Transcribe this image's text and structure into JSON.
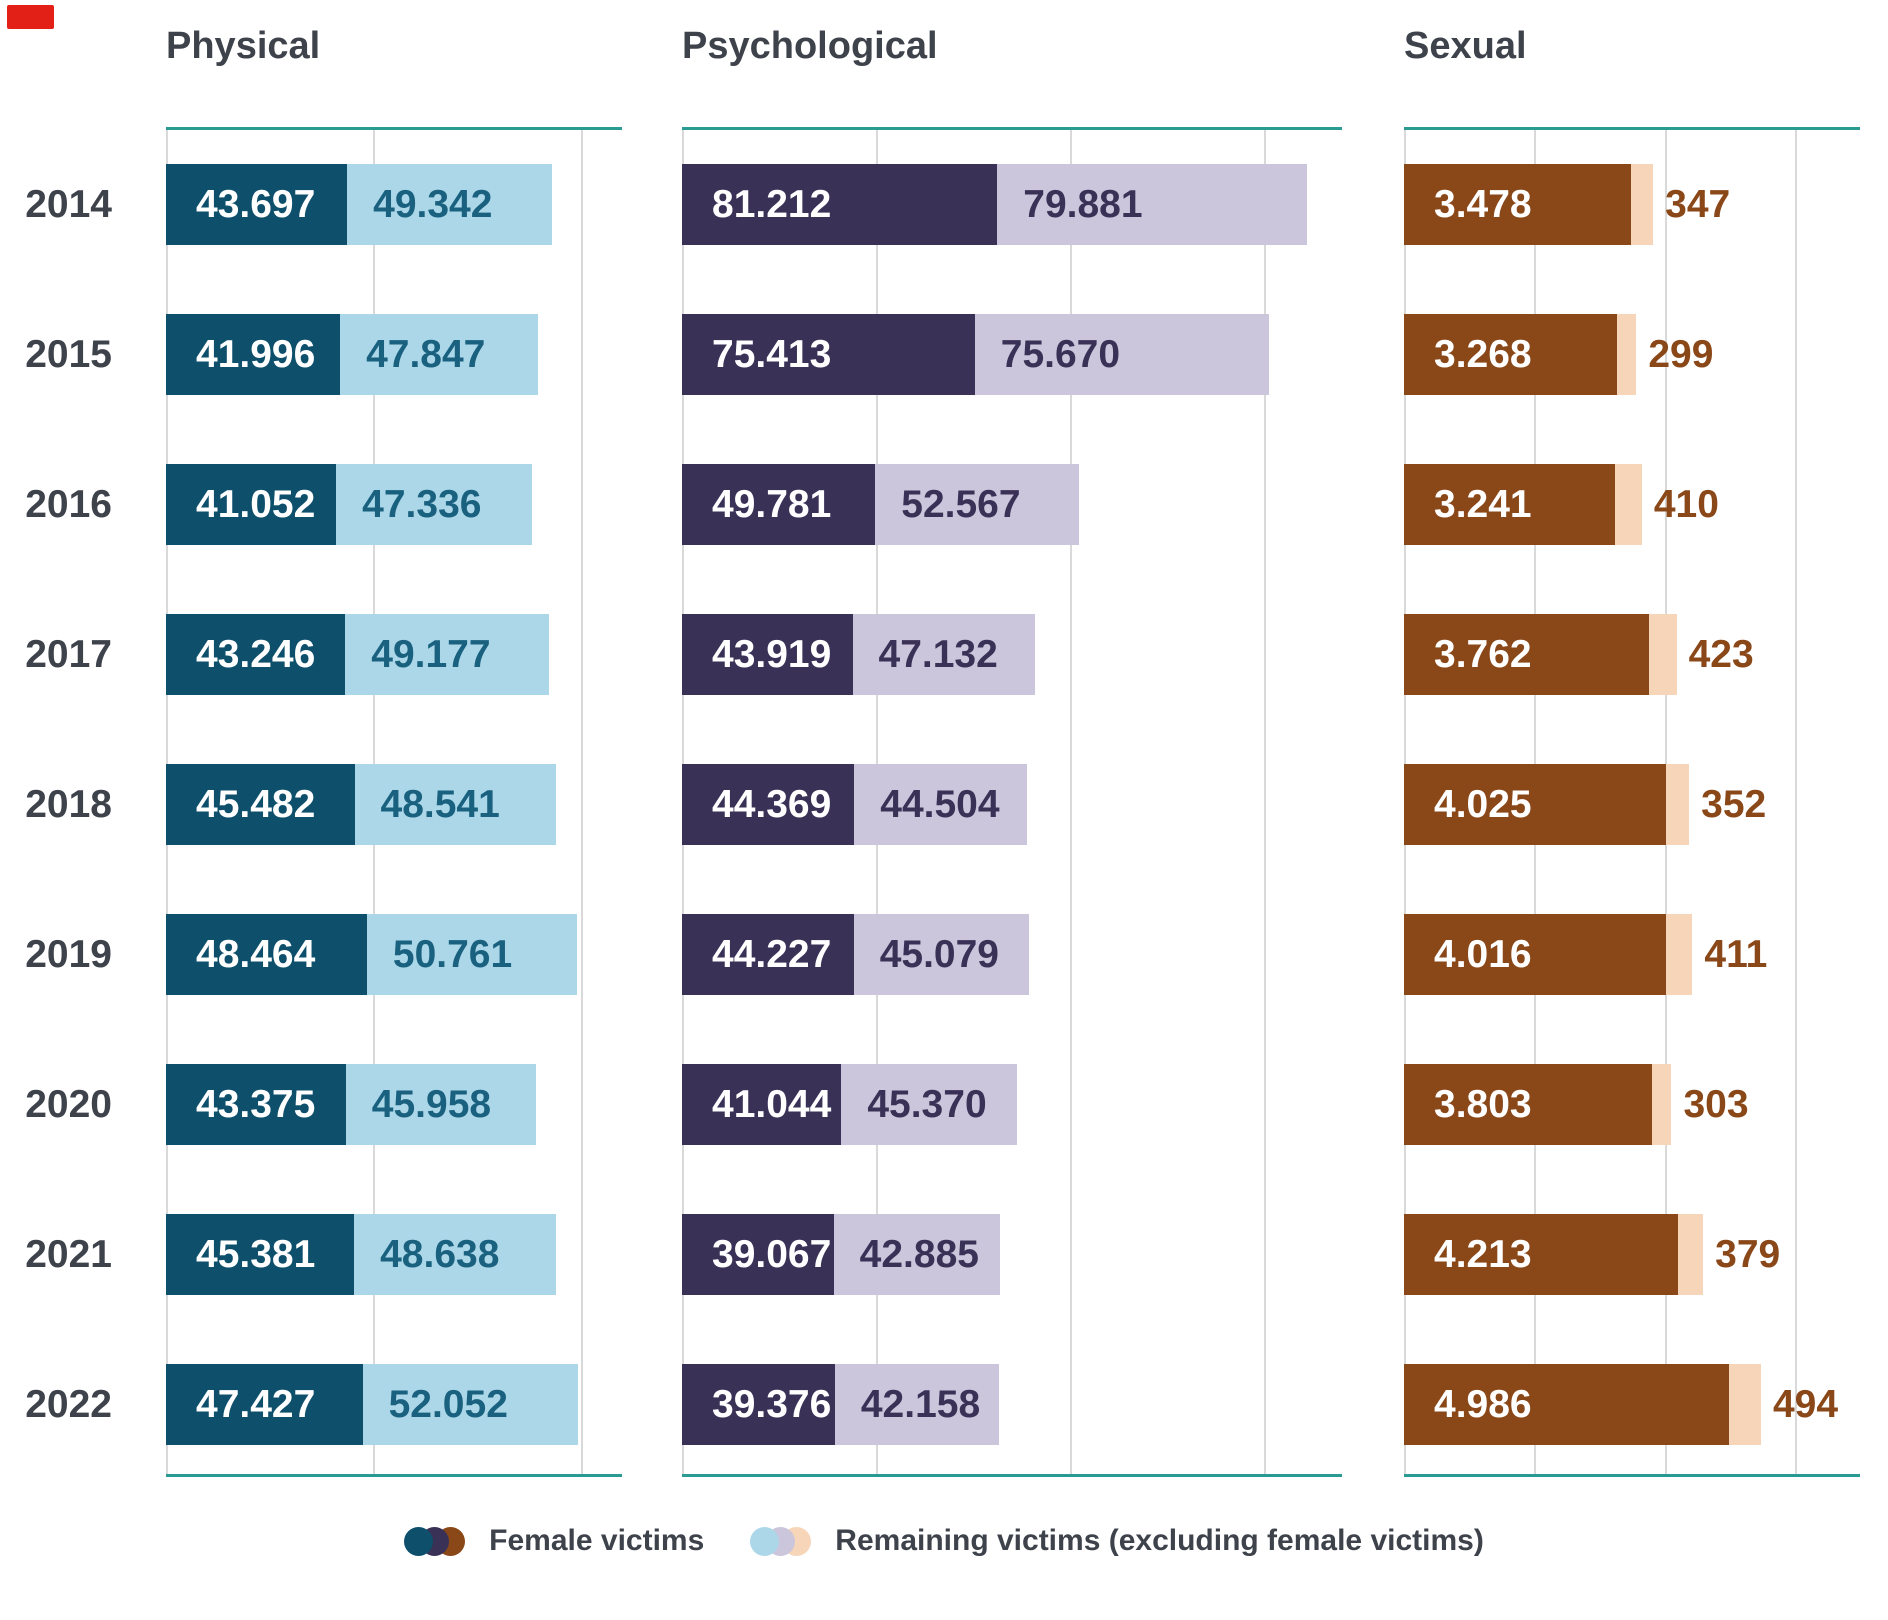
{
  "marker": {
    "color": "#e32017"
  },
  "styles": {
    "background": "#ffffff",
    "axis_line_color": "#2b9a92",
    "grid_color": "#d9d9d9",
    "text_color": "#3e434b"
  },
  "legend": {
    "female": {
      "label": "Female victims",
      "colors": [
        "#0e4f6c",
        "#3a3157",
        "#8a4718"
      ]
    },
    "remaining": {
      "label": "Remaining victims (excluding female victims)",
      "colors": [
        "#abd7e9",
        "#cbc6db",
        "#f7d5b8"
      ]
    }
  },
  "chart_data": {
    "type": "bar",
    "orientation": "horizontal",
    "stacked": true,
    "grid": true,
    "legend_position": "bottom",
    "categories": [
      "2014",
      "2015",
      "2016",
      "2017",
      "2018",
      "2019",
      "2020",
      "2021",
      "2022"
    ],
    "series_names": [
      "Female victims",
      "Remaining victims (excluding female victims)"
    ],
    "panels": [
      {
        "title": "Physical",
        "axis_min": 0,
        "axis_max": 110000,
        "gridline_step": 50000,
        "female_color": "#0e4f6c",
        "remaining_color": "#abd7e9",
        "female_text_color": "#ffffff",
        "remaining_text_color": "#19617f",
        "remaining_label_position": "inside",
        "series": [
          {
            "name": "Female victims",
            "values": [
              43697,
              41996,
              41052,
              43246,
              45482,
              48464,
              43375,
              45381,
              47427
            ]
          },
          {
            "name": "Remaining victims (excluding female victims)",
            "values": [
              49342,
              47847,
              47336,
              49177,
              48541,
              50761,
              45958,
              48638,
              52052
            ]
          }
        ],
        "labels": {
          "female": [
            "43.697",
            "41.996",
            "41.052",
            "43.246",
            "45.482",
            "48.464",
            "43.375",
            "45.381",
            "47.427"
          ],
          "remaining": [
            "49.342",
            "47.847",
            "47.336",
            "49.177",
            "48.541",
            "50.761",
            "45.958",
            "48.638",
            "52.052"
          ]
        }
      },
      {
        "title": "Psychological",
        "axis_min": 0,
        "axis_max": 170000,
        "gridline_step": 50000,
        "female_color": "#3a3157",
        "remaining_color": "#cbc6db",
        "female_text_color": "#ffffff",
        "remaining_text_color": "#3a3157",
        "remaining_label_position": "inside",
        "series": [
          {
            "name": "Female victims",
            "values": [
              81212,
              75413,
              49781,
              43919,
              44369,
              44227,
              41044,
              39067,
              39376
            ]
          },
          {
            "name": "Remaining victims (excluding female victims)",
            "values": [
              79881,
              75670,
              52567,
              47132,
              44504,
              45079,
              45370,
              42885,
              42158
            ]
          }
        ],
        "labels": {
          "female": [
            "81.212",
            "75.413",
            "49.781",
            "43.919",
            "44.369",
            "44.227",
            "41.044",
            "39.067",
            "39.376"
          ],
          "remaining": [
            "79.881",
            "75.670",
            "52.567",
            "47.132",
            "44.504",
            "45.079",
            "45.370",
            "42.885",
            "42.158"
          ]
        }
      },
      {
        "title": "Sexual",
        "axis_min": 0,
        "axis_max": 7000,
        "gridline_step": 2000,
        "female_color": "#8a4718",
        "remaining_color": "#f7d5b8",
        "female_text_color": "#ffffff",
        "remaining_text_color": "#8a4718",
        "remaining_label_position": "outside",
        "series": [
          {
            "name": "Female victims",
            "values": [
              3478,
              3268,
              3241,
              3762,
              4025,
              4016,
              3803,
              4213,
              4986
            ]
          },
          {
            "name": "Remaining victims (excluding female victims)",
            "values": [
              347,
              299,
              410,
              423,
              352,
              411,
              303,
              379,
              494
            ]
          }
        ],
        "labels": {
          "female": [
            "3.478",
            "3.268",
            "3.241",
            "3.762",
            "4.025",
            "4.016",
            "3.803",
            "4.213",
            "4.986"
          ],
          "remaining": [
            "347",
            "299",
            "410",
            "423",
            "352",
            "411",
            "303",
            "379",
            "494"
          ]
        }
      }
    ]
  }
}
